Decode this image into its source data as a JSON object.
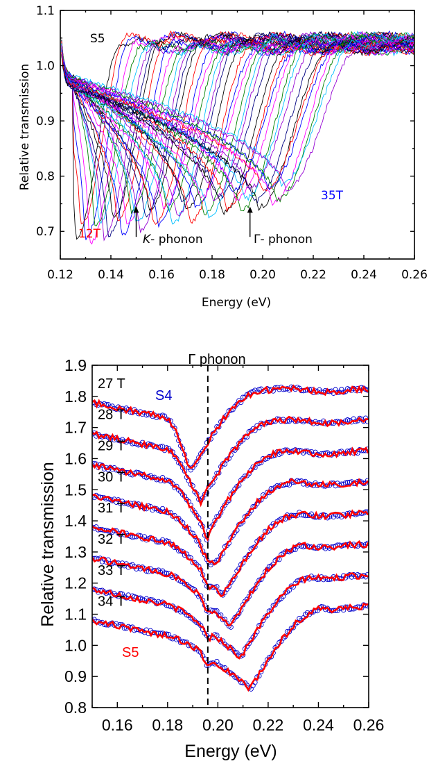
{
  "chart_data": [
    {
      "type": "line",
      "panel": "top",
      "xlabel": "Energy (eV)",
      "ylabel": "Relative transmission",
      "xlim": [
        0.12,
        0.26
      ],
      "ylim": [
        0.65,
        1.1
      ],
      "xticks": [
        0.12,
        0.14,
        0.16,
        0.18,
        0.2,
        0.22,
        0.24,
        0.26
      ],
      "xtick_labels": [
        "0.12",
        "0.14",
        "0.16",
        "0.18",
        "0.20",
        "0.22",
        "0.24",
        "0.26"
      ],
      "yticks": [
        0.7,
        0.8,
        0.9,
        1.0,
        1.1
      ],
      "ytick_labels": [
        "0.7",
        "0.8",
        "0.9",
        "1.0",
        "1.1"
      ],
      "grid": false,
      "field_start_T": 12,
      "field_end_T": 35,
      "field_step_T": 0.5,
      "palette": [
        "#000000",
        "#ff0000",
        "#0000ff",
        "#ff00ff",
        "#008000",
        "#00bfff",
        "#9400d3",
        "#000080"
      ],
      "annotations": {
        "sample": "S5",
        "low_field": {
          "text": "12T",
          "color": "#ff0000",
          "x": 0.125,
          "y": 0.665
        },
        "high_field": {
          "text": "35T",
          "color": "#0000ff",
          "x": 0.226,
          "y": 0.77
        },
        "k_phonon": {
          "italic": "K",
          "text": "- phonon",
          "x": 0.15,
          "y_from": 0.69,
          "y_to": 0.745
        },
        "gamma_phonon": {
          "text": "Γ- phonon",
          "x": 0.195,
          "y_from": 0.69,
          "y_to": 0.745
        }
      }
    },
    {
      "type": "line",
      "panel": "bottom",
      "xlabel": "Energy (eV)",
      "ylabel": "Relative transmission",
      "xlim": [
        0.15,
        0.26
      ],
      "ylim": [
        0.8,
        1.9
      ],
      "xticks": [
        0.16,
        0.18,
        0.2,
        0.22,
        0.24,
        0.26
      ],
      "xtick_labels": [
        "0.16",
        "0.18",
        "0.20",
        "0.22",
        "0.24",
        "0.26"
      ],
      "yticks": [
        0.8,
        0.9,
        1.0,
        1.1,
        1.2,
        1.3,
        1.4,
        1.5,
        1.6,
        1.7,
        1.8,
        1.9
      ],
      "ytick_labels": [
        "0.8",
        "0.9",
        "1.0",
        "1.1",
        "1.2",
        "1.3",
        "1.4",
        "1.5",
        "1.6",
        "1.7",
        "1.8",
        "1.9"
      ],
      "grid": false,
      "gamma_line": {
        "x": 0.196,
        "label": "Γ phonon"
      },
      "series_styles": [
        {
          "name": "S4",
          "color": "#0000cc",
          "marker": "open-circle"
        },
        {
          "name": "S5",
          "color": "#ff0000",
          "marker": "line"
        }
      ],
      "traces": [
        {
          "label": "27 T",
          "field": 27,
          "offset": 0.7,
          "E_min": 0.189
        },
        {
          "label": "28 T",
          "field": 28,
          "offset": 0.6,
          "E_min": 0.193
        },
        {
          "label": "29 T",
          "field": 29,
          "offset": 0.5,
          "E_min": 0.196
        },
        {
          "label": "30 T",
          "field": 30,
          "offset": 0.4,
          "E_min": 0.199
        },
        {
          "label": "31 T",
          "field": 31,
          "offset": 0.3,
          "E_min": 0.202
        },
        {
          "label": "32 T",
          "field": 32,
          "offset": 0.2,
          "E_min": 0.205
        },
        {
          "label": "33 T",
          "field": 33,
          "offset": 0.1,
          "E_min": 0.209
        },
        {
          "label": "34 T",
          "field": 34,
          "offset": 0.0,
          "E_min": 0.213
        }
      ],
      "profile": {
        "start": 1.08,
        "sharp_drop_start": 0.18,
        "at_gamma": 0.95,
        "min": 0.86,
        "plateau": 1.12
      },
      "annotations": {
        "s4": {
          "text": "S4",
          "color": "#0000cc",
          "x": 0.18,
          "y": 1.785
        },
        "s5": {
          "text": "S5",
          "color": "#ff0000",
          "x": 0.163,
          "y": 0.93
        }
      }
    }
  ]
}
